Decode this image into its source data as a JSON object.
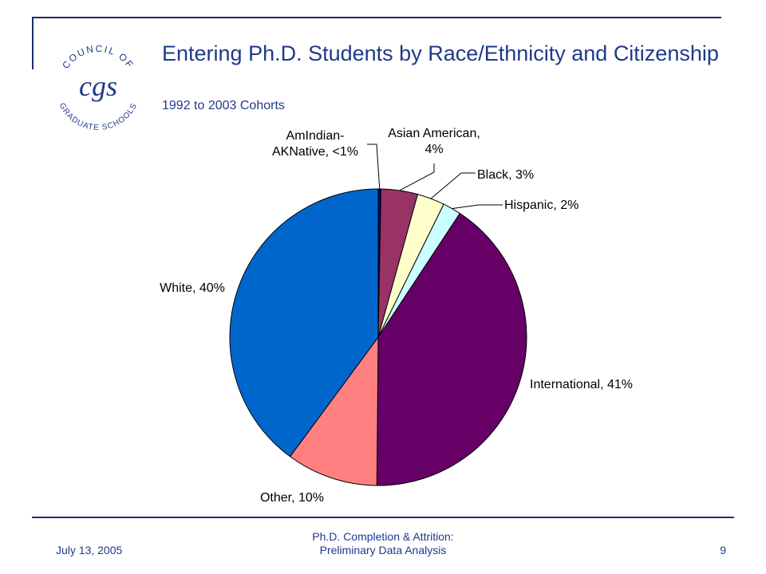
{
  "slide": {
    "title": "Entering Ph.D. Students by Race/Ethnicity and Citizenship",
    "subtitle": "1992 to 2003 Cohorts",
    "footer_date": "July 13, 2005",
    "footer_title_line1": "Ph.D. Completion & Attrition:",
    "footer_title_line2": "Preliminary Data Analysis",
    "page_number": "9"
  },
  "logo": {
    "top_text": "COUNCIL OF",
    "bottom_text": "GRADUATE SCHOOLS",
    "monogram": "cgs",
    "color": "#1f3a8a"
  },
  "colors": {
    "accent": "#1f2f6b",
    "title": "#1f3a8a"
  },
  "chart_data": {
    "type": "pie",
    "start": "12 o'clock, clockwise",
    "slices": [
      {
        "label": "AmIndian-AKNative, <1%",
        "value": 0.3,
        "color": "#000080"
      },
      {
        "label": "Asian American, 4%",
        "value": 4,
        "color": "#993366"
      },
      {
        "label": "Black, 3%",
        "value": 3,
        "color": "#ffffcc"
      },
      {
        "label": "Hispanic, 2%",
        "value": 2,
        "color": "#ccffff"
      },
      {
        "label": "International, 41%",
        "value": 41,
        "color": "#660066"
      },
      {
        "label": "Other, 10%",
        "value": 10,
        "color": "#ff8080"
      },
      {
        "label": "White, 40%",
        "value": 40,
        "color": "#0066cc"
      }
    ]
  }
}
